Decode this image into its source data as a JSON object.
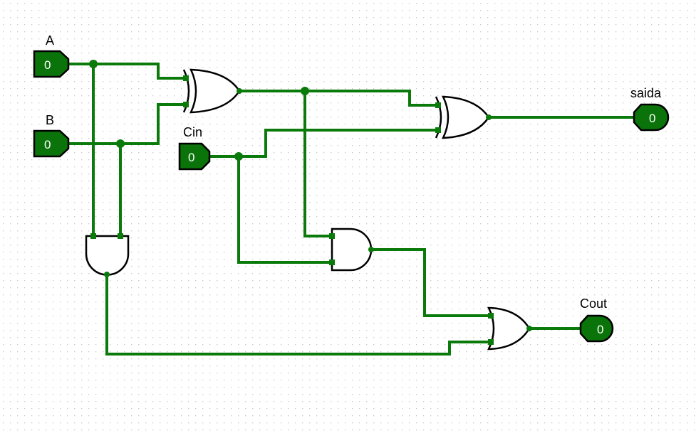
{
  "inputs": {
    "a": {
      "label": "A",
      "value": "0"
    },
    "b": {
      "label": "B",
      "value": "0"
    },
    "cin": {
      "label": "Cin",
      "value": "0"
    }
  },
  "outputs": {
    "saida": {
      "label": "saida",
      "value": "0"
    },
    "cout": {
      "label": "Cout",
      "value": "0"
    }
  },
  "gates": [
    {
      "id": "xor1",
      "type": "xor"
    },
    {
      "id": "xor2",
      "type": "xor"
    },
    {
      "id": "and1",
      "type": "and"
    },
    {
      "id": "and2",
      "type": "and"
    },
    {
      "id": "or1",
      "type": "or"
    }
  ],
  "colors": {
    "wire": "#0a7a0a",
    "pin": "#0a730a",
    "grid": "#c8c8c8"
  }
}
